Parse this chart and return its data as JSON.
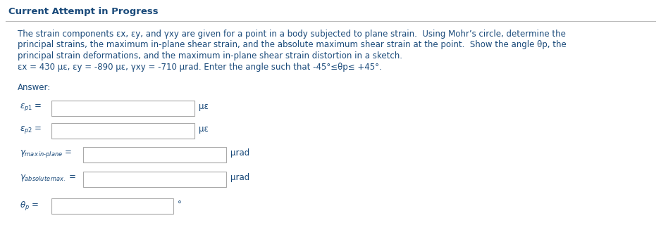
{
  "title": "Current Attempt in Progress",
  "title_color": "#1a4a7a",
  "title_fontsize": 9.5,
  "body_text_color": "#1a4a7a",
  "body_fontsize": 8.5,
  "paragraph": [
    "The strain components εx, εy, and γxy are given for a point in a body subjected to plane strain.  Using Mohr’s circle, determine the",
    "principal strains, the maximum in-plane shear strain, and the absolute maximum shear strain at the point.  Show the angle θp, the",
    "principal strain deformations, and the maximum in-plane shear strain distortion in a sketch.",
    "εx = 430 με, εy = -890 με, γxy = -710 μrad. Enter the angle such that -45°≤θp≤ +45°."
  ],
  "answer_label": "Answer:",
  "bg_color": "#ffffff",
  "separator_color": "#bbbbbb",
  "box_edge_color": "#aaaaaa",
  "field_label_fontsize": 8.5,
  "unit_fontsize": 8.5
}
